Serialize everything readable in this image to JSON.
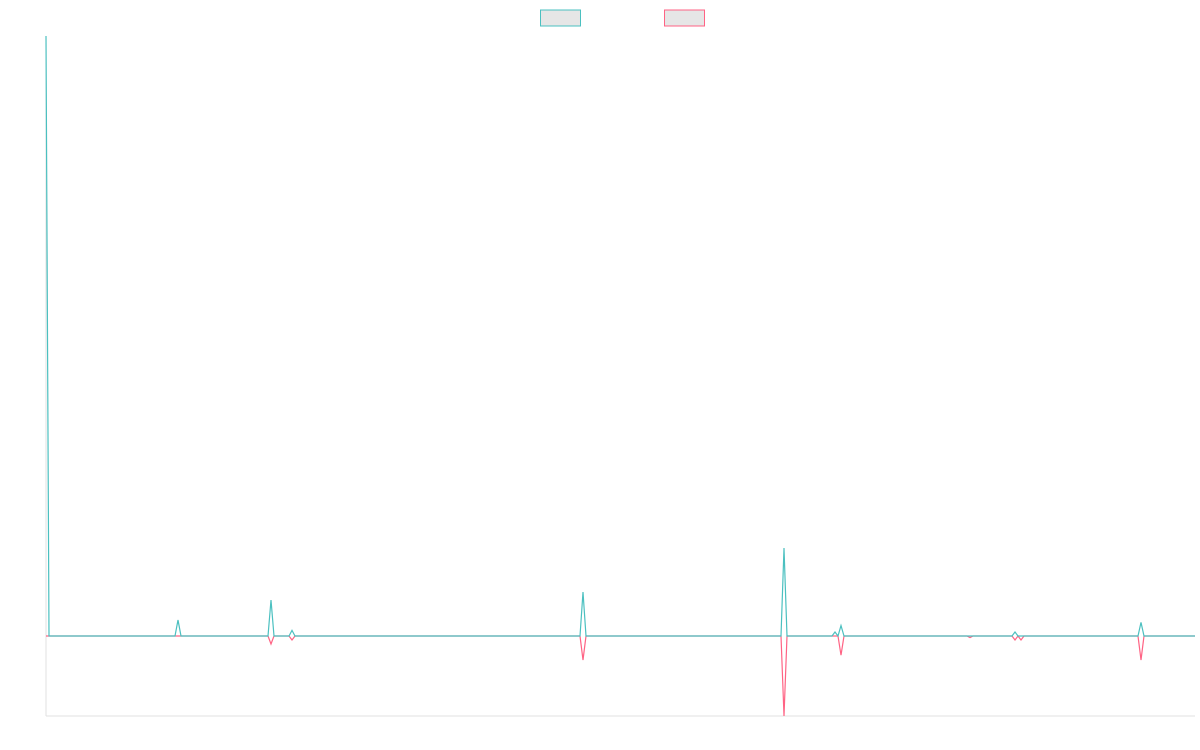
{
  "chart_data": {
    "type": "line",
    "x": [
      0,
      1,
      43,
      44,
      45,
      74,
      75,
      76,
      81,
      82,
      83,
      178,
      179,
      180,
      245,
      246,
      247,
      262,
      263,
      264,
      265,
      266,
      307,
      308,
      309,
      322,
      323,
      324,
      325,
      326,
      364,
      365,
      366,
      383
    ],
    "series": [
      {
        "color": "#ff6384",
        "values": [
          0,
          0,
          0,
          0,
          0,
          0,
          -1,
          0,
          0,
          -0.5,
          0,
          0,
          -3,
          0,
          0,
          -10,
          0,
          0,
          0,
          0,
          -2.4,
          0,
          0,
          -0.2,
          0,
          0,
          -0.5,
          0,
          -0.5,
          0,
          0,
          -3,
          0,
          0
        ]
      },
      {
        "color": "#4bc0c0",
        "values": [
          75,
          0,
          0,
          2,
          0,
          0,
          4.5,
          0,
          0,
          0.7,
          0,
          0,
          5.5,
          0,
          0,
          11,
          0,
          0,
          0.5,
          0,
          1.3,
          0,
          0,
          0,
          0,
          0,
          0.5,
          0,
          0,
          0,
          0,
          1.7,
          0,
          0
        ]
      }
    ],
    "xlim": [
      0,
      383
    ],
    "ylim": [
      -10,
      75
    ],
    "legend": "top"
  }
}
